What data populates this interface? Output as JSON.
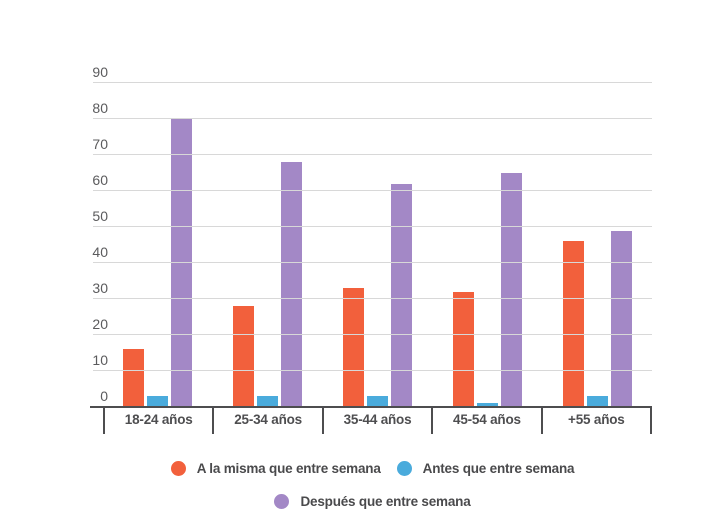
{
  "chart_data": {
    "type": "bar",
    "title": "",
    "xlabel": "",
    "ylabel": "",
    "categories": [
      "18-24 años",
      "25-34 años",
      "35-44 años",
      "45-54 años",
      "+55 años"
    ],
    "series": [
      {
        "name": "A la misma que entre semana",
        "color": "#f2603c",
        "values": [
          16,
          28,
          33,
          32,
          46
        ]
      },
      {
        "name": "Antes que entre semana",
        "color": "#4aabdc",
        "values": [
          3,
          3,
          3,
          1,
          3
        ]
      },
      {
        "name": "Después que entre semana",
        "color": "#a388c6",
        "values": [
          80,
          68,
          62,
          65,
          49
        ]
      }
    ],
    "ylim": [
      0,
      90
    ],
    "yticks": [
      0,
      10,
      20,
      30,
      40,
      50,
      60,
      70,
      80,
      90
    ],
    "grid": true,
    "legend_position": "bottom"
  },
  "colors": {
    "background": "#ffffff",
    "gridline": "#d8d8d8",
    "axis_line": "#4d4d4f",
    "y_tick_text": "#5b5b5d",
    "category_text": "#4e4e50",
    "legend_text": "#4a4a4c"
  }
}
